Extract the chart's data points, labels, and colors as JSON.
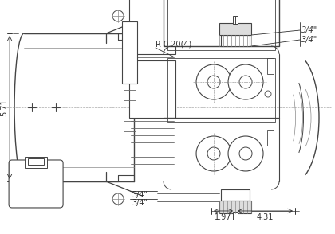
{
  "bg_color": "#ffffff",
  "lc": "#444444",
  "dc": "#333333",
  "dim_571": "5.71",
  "dim_197": "1.97",
  "dim_431": "4.31",
  "radius_label": "R 0.20(4)",
  "port_top1": "3/4\"",
  "port_top2": "3/4\"",
  "port_bot1": "3/4\"",
  "port_bot2": "3/4\""
}
